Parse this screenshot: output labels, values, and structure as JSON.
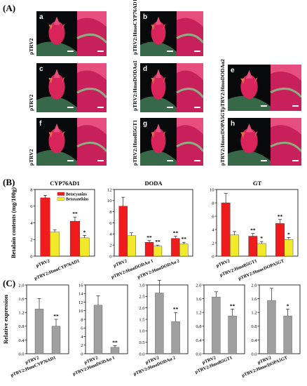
{
  "panels": {
    "A": "(A)",
    "B": "(B)",
    "C": "(C)"
  },
  "photos": [
    {
      "letter": "a",
      "label": "pTRV2"
    },
    {
      "letter": "b",
      "label": "pTRV2:HmoCYP76AD1"
    },
    {
      "letter": "c",
      "label": "pTRV2"
    },
    {
      "letter": "d",
      "label": "pTRV2:HmoDODAα1"
    },
    {
      "letter": "e",
      "label": "pTRV2:HmoDODAα2"
    },
    {
      "letter": "f",
      "label": "pTRV2"
    },
    {
      "letter": "g",
      "label": "pTRV2:HmoB5GT1"
    },
    {
      "letter": "h",
      "label": "pTRV2:HmocDOPA5GT"
    }
  ],
  "colors": {
    "betacyanins": "#ee1c1c",
    "betaxanthins": "#f2e92a",
    "gray_bar": "#a0a0a0"
  },
  "chart_data": [
    {
      "type": "bar",
      "title": "CYP76AD1",
      "ylabel": "Betalain contents (mg/100g)",
      "ylim": [
        0,
        8
      ],
      "yticks": [
        "0",
        "2",
        "4",
        "6",
        "8"
      ],
      "categories": [
        "pTRV2",
        "pTRV2:HmoCYP76AD1"
      ],
      "legend": [
        "Betacyanins",
        "Betaxanthins"
      ],
      "series": [
        {
          "name": "Betacyanins",
          "values": [
            7.0,
            4.2
          ],
          "errors": [
            0.3,
            0.5
          ],
          "stars": [
            "",
            "**"
          ]
        },
        {
          "name": "Betaxanthins",
          "values": [
            2.9,
            2.2
          ],
          "errors": [
            0.25,
            0.3
          ],
          "stars": [
            "",
            "*"
          ]
        }
      ]
    },
    {
      "type": "bar",
      "title": "DODA",
      "ylim": [
        0,
        12
      ],
      "yticks": [
        "0",
        "2",
        "4",
        "6",
        "8",
        "10",
        "12"
      ],
      "categories": [
        "pTRV2",
        "pTRV2:HmoDODAα 1",
        "pTRV2:HmoDODAα 2"
      ],
      "series": [
        {
          "name": "Betacyanins",
          "values": [
            9.0,
            2.5,
            3.2
          ],
          "errors": [
            1.6,
            0.3,
            0.4
          ],
          "stars": [
            "",
            "**",
            "**"
          ]
        },
        {
          "name": "Betaxanthins",
          "values": [
            3.7,
            1.8,
            2.2
          ],
          "errors": [
            0.5,
            0.2,
            0.3
          ],
          "stars": [
            "",
            "**",
            "**"
          ]
        }
      ]
    },
    {
      "type": "bar",
      "title": "GT",
      "ylim": [
        0,
        10
      ],
      "yticks": [
        "0",
        "2",
        "4",
        "6",
        "8",
        "10"
      ],
      "categories": [
        "pTRV2",
        "pTRV2:HmoB5GT1",
        "pTRV2:HmocDOPA5GT"
      ],
      "series": [
        {
          "name": "Betacyanins",
          "values": [
            8.0,
            3.0,
            4.9
          ],
          "errors": [
            1.4,
            0.4,
            0.6
          ],
          "stars": [
            "",
            "**",
            "**"
          ]
        },
        {
          "name": "Betaxanthins",
          "values": [
            3.2,
            1.9,
            2.5
          ],
          "errors": [
            0.5,
            0.3,
            0.3
          ],
          "stars": [
            "",
            "*",
            "*"
          ]
        }
      ]
    },
    {
      "type": "bar",
      "ylabel": "Relative expression",
      "ylim": [
        0,
        2.0
      ],
      "yticks": [
        "0.0",
        "0.4",
        "0.8",
        "1.2",
        "1.6",
        "2.0"
      ],
      "categories": [
        "pTRV2",
        "pTRV2:HmoCYP76AD1"
      ],
      "values": [
        1.3,
        0.8
      ],
      "errors": [
        0.3,
        0.2
      ],
      "stars": [
        "",
        "**"
      ]
    },
    {
      "type": "bar",
      "ylim": [
        0,
        16
      ],
      "yticks": [
        "0",
        "2",
        "4",
        "6",
        "8",
        "10",
        "12",
        "14",
        "16"
      ],
      "categories": [
        "pTRV2",
        "pTRV2:HmoDODAα 1"
      ],
      "values": [
        11.3,
        1.5
      ],
      "errors": [
        2.2,
        0.4
      ],
      "stars": [
        "",
        "**"
      ]
    },
    {
      "type": "bar",
      "ylim": [
        0,
        3.0
      ],
      "yticks": [
        "0.0",
        "0.5",
        "1.0",
        "1.5",
        "2.0",
        "2.5",
        "3.0"
      ],
      "categories": [
        "pTRV2",
        "pTRV2:HmoDODAα 2"
      ],
      "values": [
        2.65,
        1.4
      ],
      "errors": [
        0.55,
        0.4
      ],
      "stars": [
        "",
        "**"
      ]
    },
    {
      "type": "bar",
      "ylim": [
        0,
        2.0
      ],
      "yticks": [
        "0.0",
        "0.4",
        "0.8",
        "1.2",
        "1.6",
        "2.0"
      ],
      "categories": [
        "pTRV2",
        "pTRV2:HmoB5GT1"
      ],
      "values": [
        1.65,
        1.1
      ],
      "errors": [
        0.15,
        0.2
      ],
      "stars": [
        "",
        "**"
      ]
    },
    {
      "type": "bar",
      "ylim": [
        0,
        2.0
      ],
      "yticks": [
        "0.0",
        "0.4",
        "0.8",
        "1.2",
        "1.6",
        "2.0"
      ],
      "categories": [
        "pTRV2",
        "pTRV2:HmocDOPA5GT"
      ],
      "values": [
        1.55,
        1.1
      ],
      "errors": [
        0.35,
        0.2
      ],
      "stars": [
        "",
        "*"
      ]
    }
  ]
}
